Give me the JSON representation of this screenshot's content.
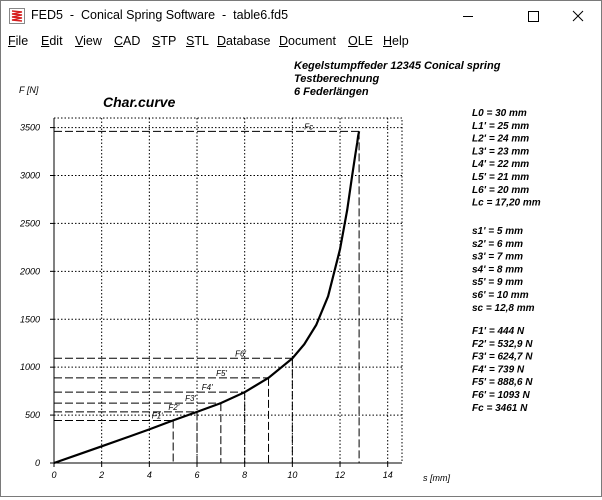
{
  "window": {
    "title": "FED5  -  Conical Spring Software  -  table6.fd5",
    "icon": "fed5-spring-app-icon",
    "controls": [
      "minimize-icon",
      "maximize-icon",
      "close-icon"
    ]
  },
  "menu": [
    {
      "label": "File",
      "acc": "F",
      "rest": "ile"
    },
    {
      "label": "Edit",
      "acc": "E",
      "rest": "dit"
    },
    {
      "label": "View",
      "acc": "V",
      "rest": "iew"
    },
    {
      "label": "CAD",
      "acc": "C",
      "rest": "AD"
    },
    {
      "label": "STP",
      "acc": "S",
      "rest": "TP"
    },
    {
      "label": "STL",
      "acc": "S",
      "rest": "TL"
    },
    {
      "label": "Database",
      "acc": "D",
      "rest": "atabase"
    },
    {
      "label": "Document",
      "acc": "D",
      "rest": "ocument"
    },
    {
      "label": "OLE",
      "acc": "O",
      "rest": "LE"
    },
    {
      "label": "Help",
      "acc": "H",
      "rest": "elp"
    }
  ],
  "header": {
    "line1": "Kegelstumpffeder  12345  Conical spring",
    "line2": "Testberechnung",
    "line3": "6 Federlängen"
  },
  "chart_title": "Char.curve",
  "parameters": {
    "lengths": [
      "L0 = 30 mm",
      "L1' = 25 mm",
      "L2' = 24 mm",
      "L3' = 23 mm",
      "L4' = 22 mm",
      "L5' = 21 mm",
      "L6' = 20 mm",
      "Lc = 17,20 mm"
    ],
    "travels": [
      "s1' = 5 mm",
      "s2' = 6 mm",
      "s3' = 7 mm",
      "s4' = 8 mm",
      "s5' = 9 mm",
      "s6' = 10 mm",
      "sc = 12,8 mm"
    ],
    "forces": [
      "F1' = 444 N",
      "F2' = 532,9 N",
      "F3' = 624,7 N",
      "F4' = 739 N",
      "F5' = 888,6 N",
      "F6' = 1093 N",
      "Fc = 3461 N"
    ]
  },
  "chart_data": {
    "type": "line",
    "title": "Char.curve",
    "xlabel": "s [mm]",
    "ylabel": "F [N]",
    "xlim": [
      0,
      14.6
    ],
    "ylim": [
      0,
      3600
    ],
    "xticks": [
      0,
      2,
      4,
      6,
      8,
      10,
      12,
      14
    ],
    "yticks": [
      0,
      500,
      1000,
      1500,
      2000,
      2500,
      3000,
      3500
    ],
    "grid": true,
    "series": [
      {
        "x": [
          0,
          1,
          2,
          3,
          4,
          5,
          6,
          7,
          8,
          9,
          10,
          10.5,
          11,
          11.5,
          12,
          12.3,
          12.5,
          12.65,
          12.72,
          12.76,
          12.8
        ],
        "y": [
          0,
          87,
          174,
          262,
          351,
          444,
          533,
          625,
          739,
          889,
          1093,
          1240,
          1440,
          1740,
          2230,
          2640,
          2980,
          3230,
          3340,
          3410,
          3461
        ]
      }
    ],
    "points": [
      {
        "label": "F1'",
        "s": 5,
        "F": 444,
        "label_x": 4.1
      },
      {
        "label": "F2'",
        "s": 6,
        "F": 532.9,
        "label_x": 4.8
      },
      {
        "label": "F3'",
        "s": 7,
        "F": 624.7,
        "label_x": 5.5
      },
      {
        "label": "F4'",
        "s": 8,
        "F": 739,
        "label_x": 6.2
      },
      {
        "label": "F5'",
        "s": 9,
        "F": 888.6,
        "label_x": 6.8
      },
      {
        "label": "F6'",
        "s": 10,
        "F": 1093,
        "label_x": 7.6
      },
      {
        "label": "Fc",
        "s": 12.8,
        "F": 3461,
        "label_x": 10.5
      }
    ]
  },
  "colors": {
    "title_icon": "#d62020",
    "curve": "#000000",
    "grid": "#000000"
  }
}
